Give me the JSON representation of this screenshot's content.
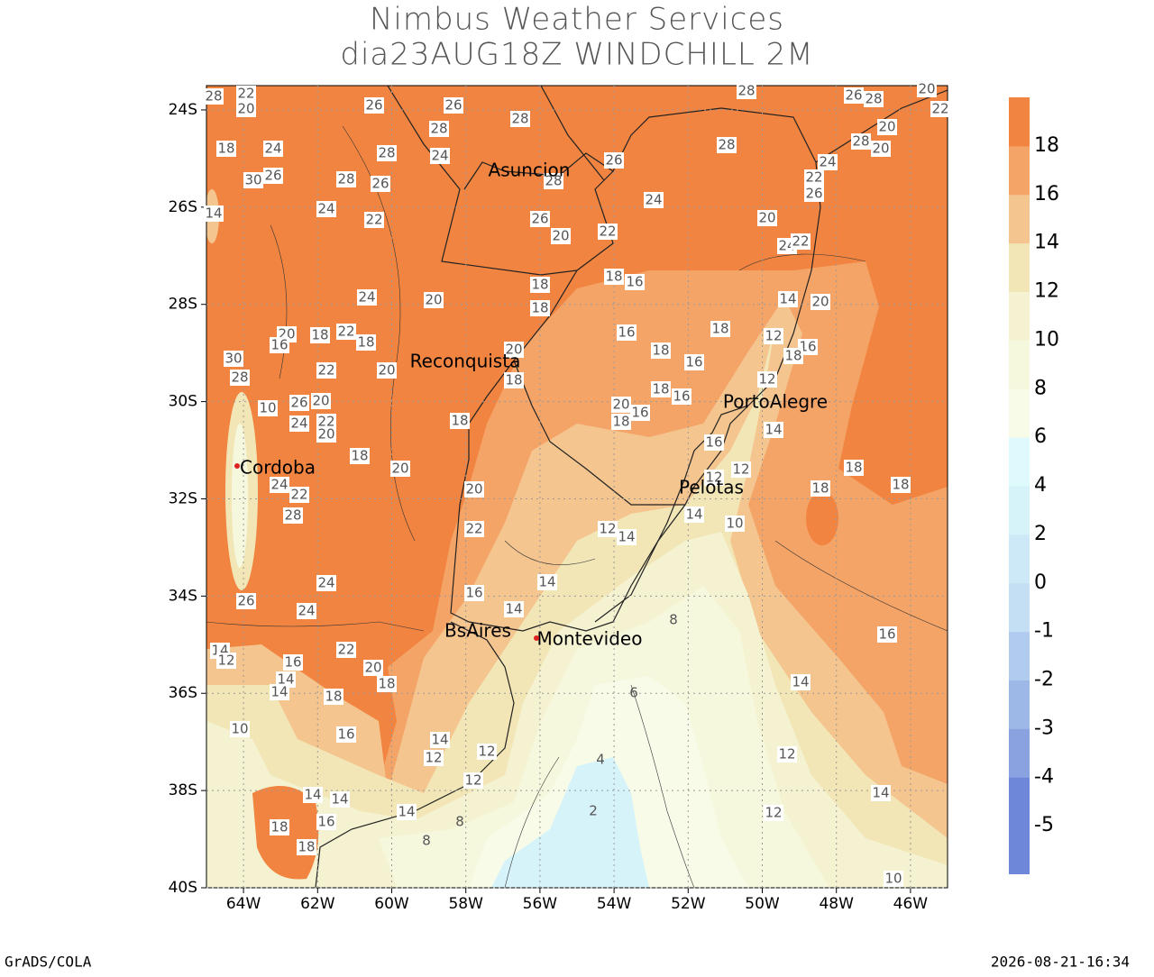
{
  "header": {
    "title": "Nimbus Weather Services",
    "subtitle": "dia23AUG18Z WINDCHILL 2M"
  },
  "map": {
    "xlim": [
      -65,
      -45
    ],
    "ylim": [
      -40,
      -23.5
    ],
    "xticks": [
      {
        "value": -64,
        "label": "64W"
      },
      {
        "value": -62,
        "label": "62W"
      },
      {
        "value": -60,
        "label": "60W"
      },
      {
        "value": -58,
        "label": "58W"
      },
      {
        "value": -56,
        "label": "56W"
      },
      {
        "value": -54,
        "label": "54W"
      },
      {
        "value": -52,
        "label": "52W"
      },
      {
        "value": -50,
        "label": "50W"
      },
      {
        "value": -48,
        "label": "48W"
      },
      {
        "value": -46,
        "label": "46W"
      }
    ],
    "yticks": [
      {
        "value": -24,
        "label": "24S"
      },
      {
        "value": -26,
        "label": "26S"
      },
      {
        "value": -28,
        "label": "28S"
      },
      {
        "value": -30,
        "label": "30S"
      },
      {
        "value": -32,
        "label": "32S"
      },
      {
        "value": -34,
        "label": "34S"
      },
      {
        "value": -36,
        "label": "36S"
      },
      {
        "value": -38,
        "label": "38S"
      },
      {
        "value": -40,
        "label": "40S"
      }
    ],
    "grid": true,
    "cities": [
      "Asuncion",
      "Reconquista",
      "Cordoba",
      "PortoAlegre",
      "Pelotas",
      "BsAires",
      "Montevideo"
    ],
    "contour_labels": [
      26,
      26,
      28,
      28,
      24,
      28,
      26,
      28,
      28,
      24,
      26,
      20,
      22,
      20,
      24,
      22,
      24,
      26,
      28,
      24,
      26,
      30,
      18,
      14,
      24,
      20,
      18,
      18,
      18,
      16,
      16,
      18,
      18,
      16,
      18,
      16,
      20,
      18,
      16,
      14,
      20,
      12,
      16,
      18,
      12,
      14,
      16,
      12,
      12,
      14,
      10,
      18,
      18,
      18,
      12,
      14,
      14,
      14,
      16,
      22,
      20,
      18,
      18,
      20,
      20,
      22,
      18,
      20,
      24,
      22,
      20,
      26,
      20,
      10,
      30,
      28,
      24,
      22,
      28,
      26,
      24,
      24,
      22,
      20,
      18,
      16,
      14,
      14,
      18,
      14,
      12,
      10,
      16,
      14,
      12,
      12,
      12,
      14,
      14,
      18,
      16,
      18,
      14,
      8,
      8,
      8,
      6,
      4,
      2,
      16,
      14,
      12,
      12,
      14,
      10,
      20,
      22,
      20,
      20,
      28,
      24,
      22,
      26,
      22,
      26,
      28,
      28,
      22,
      20,
      28,
      18,
      22,
      18,
      20,
      16
    ]
  },
  "colorbar": {
    "levels": [
      -5,
      -4,
      -3,
      -2,
      -1,
      0,
      2,
      4,
      6,
      8,
      10,
      12,
      14,
      16,
      18
    ],
    "colors": [
      "#6f87d8",
      "#8aa2e0",
      "#9db7e7",
      "#b1cbee",
      "#c4def4",
      "#cde8f7",
      "#d6f3fa",
      "#dffafc",
      "#f7fbe8",
      "#f6f8de",
      "#f4f2d0",
      "#f2e6b7",
      "#f4c58f",
      "#f5a467",
      "#f08440"
    ]
  },
  "footer": {
    "left": "GrADS/COLA",
    "right": "2026-08-21-16:34"
  }
}
